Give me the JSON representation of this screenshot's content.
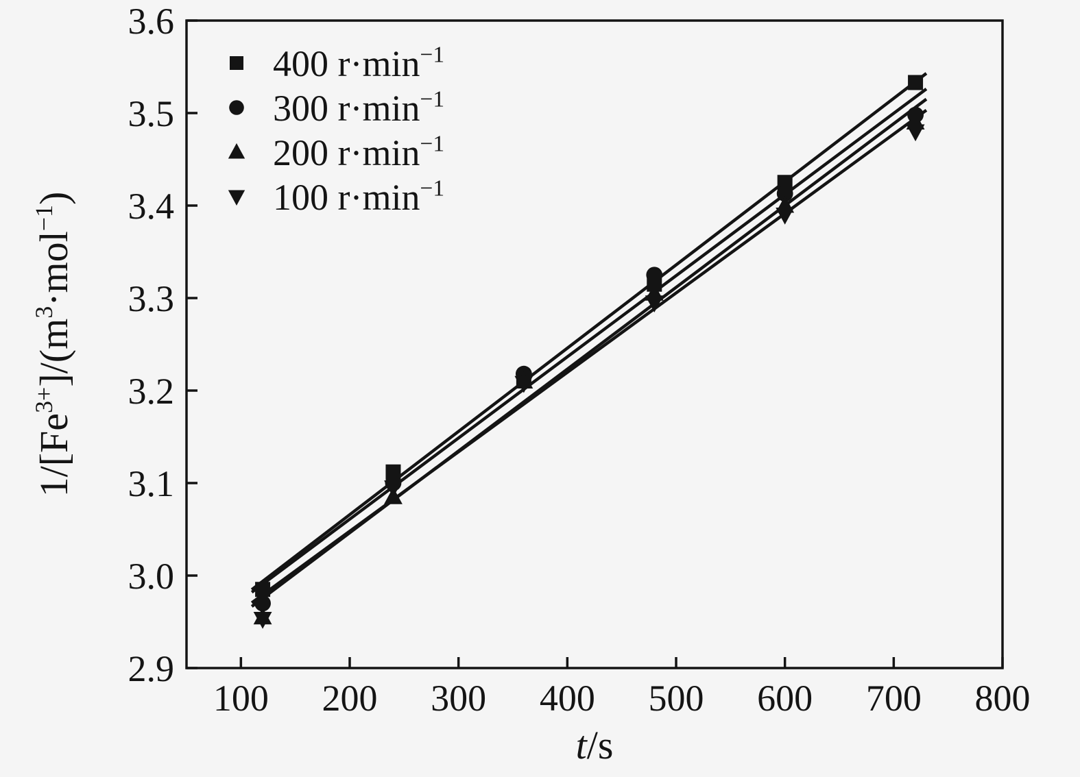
{
  "chart_data": {
    "type": "scatter",
    "title": "",
    "xlabel_italic": "t",
    "xlabel_rest": "/s",
    "ylabel": "1/[Fe³⁺]/(m³·mol⁻¹)",
    "x": [
      120,
      240,
      360,
      480,
      600,
      720
    ],
    "series": [
      {
        "name": "400 r·min⁻¹",
        "marker": "square",
        "values": [
          2.985,
          3.112,
          3.213,
          3.315,
          3.425,
          3.533
        ]
      },
      {
        "name": "300 r·min⁻¹",
        "marker": "circle",
        "values": [
          2.97,
          3.1,
          3.218,
          3.325,
          3.413,
          3.498
        ]
      },
      {
        "name": "200 r·min⁻¹",
        "marker": "triangle-up",
        "values": [
          2.955,
          3.085,
          3.21,
          3.305,
          3.4,
          3.49
        ]
      },
      {
        "name": "100 r·min⁻¹",
        "marker": "triangle-down",
        "values": [
          2.953,
          3.095,
          3.208,
          3.295,
          3.39,
          3.48
        ]
      }
    ],
    "xlim": [
      50,
      800
    ],
    "ylim": [
      2.9,
      3.6
    ],
    "xticks": [
      100,
      200,
      300,
      400,
      500,
      600,
      700,
      800
    ],
    "yticks": [
      2.9,
      3.0,
      3.1,
      3.2,
      3.3,
      3.4,
      3.5,
      3.6
    ],
    "grid": false,
    "legend_position": "top-left",
    "color": "#141414",
    "line_fit": "linear",
    "line_x_extent": [
      110,
      730
    ]
  }
}
